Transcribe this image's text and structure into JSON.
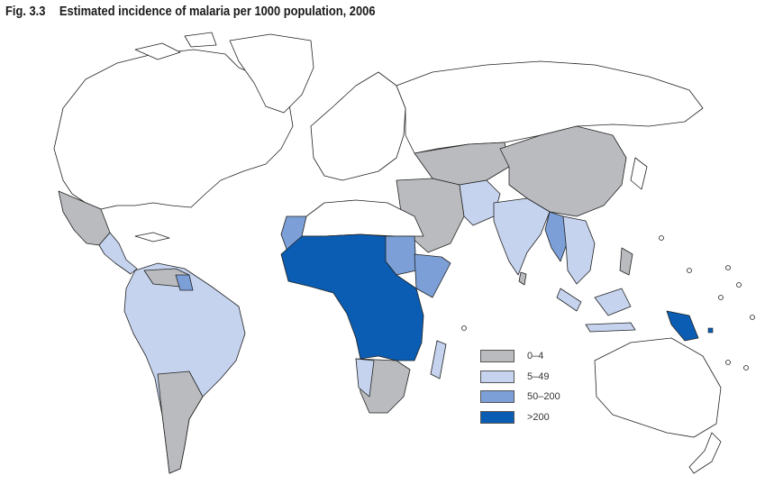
{
  "figure": {
    "number": "Fig. 3.3",
    "title": "Estimated incidence of malaria per 1000 population, 2006"
  },
  "colors": {
    "none": "#ffffff",
    "c0_4": "#b9bbbe",
    "c5_49": "#c5d3ee",
    "c50_200": "#7b9fd6",
    "c200": "#0a5db3",
    "outline": "#222222"
  },
  "legend": [
    {
      "label": "0–4",
      "color": "#b9bbbe"
    },
    {
      "label": "5–49",
      "color": "#c5d3ee"
    },
    {
      "label": "50–200",
      "color": "#7b9fd6"
    },
    {
      "label": ">200",
      "color": "#0a5db3"
    }
  ]
}
